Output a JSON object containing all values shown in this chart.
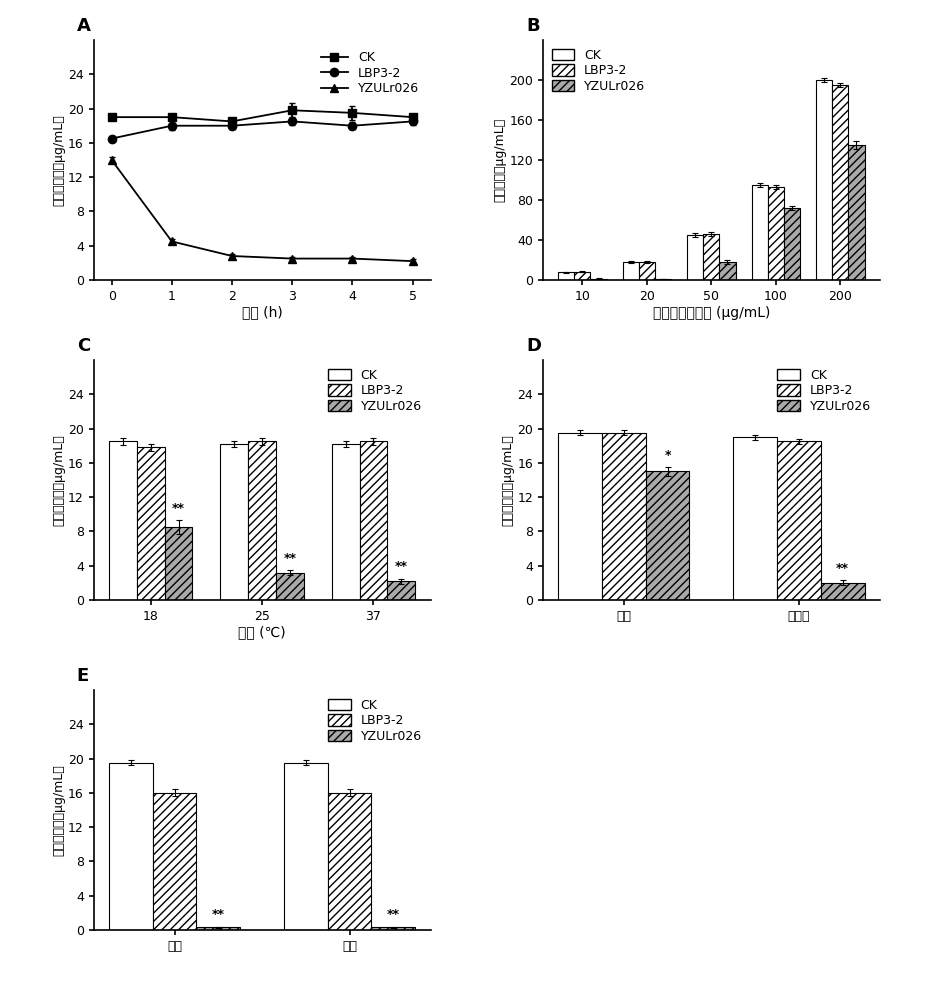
{
  "panel_A": {
    "label": "A",
    "xlabel": "时间 (h)",
    "ylabel": "鸟噘咄浓度（μg/mL）",
    "xlim": [
      -0.3,
      5.3
    ],
    "ylim": [
      0,
      28
    ],
    "yticks": [
      0,
      4,
      8,
      12,
      16,
      20,
      24
    ],
    "xticks": [
      0,
      1,
      2,
      3,
      4,
      5
    ],
    "CK_x": [
      0,
      1,
      2,
      3,
      4,
      5
    ],
    "CK_y": [
      19.0,
      19.0,
      18.5,
      19.8,
      19.5,
      19.0
    ],
    "CK_err": [
      0.3,
      0.4,
      0.3,
      0.8,
      0.8,
      0.4
    ],
    "LBP_x": [
      0,
      1,
      2,
      3,
      4,
      5
    ],
    "LBP_y": [
      16.5,
      18.0,
      18.0,
      18.5,
      18.0,
      18.5
    ],
    "LBP_err": [
      0.3,
      0.5,
      0.4,
      0.4,
      0.4,
      0.4
    ],
    "YZU_x": [
      0,
      1,
      2,
      3,
      4,
      5
    ],
    "YZU_y": [
      14.0,
      4.5,
      2.8,
      2.5,
      2.5,
      2.2
    ],
    "YZU_err": [
      0.3,
      0.3,
      0.2,
      0.2,
      0.2,
      0.2
    ],
    "legend_labels": [
      "CK",
      "LBP3-2",
      "YZULr026"
    ],
    "legend_markers": [
      "s",
      "o",
      "^"
    ]
  },
  "panel_B": {
    "label": "B",
    "xlabel": "鸟噘咄初始浓度 (μg/mL)",
    "ylabel": "残余浓度（μg/mL）",
    "xlim_groups": [
      10,
      20,
      50,
      100,
      200
    ],
    "ylim": [
      0,
      240
    ],
    "yticks": [
      0,
      40,
      80,
      120,
      160,
      200
    ],
    "CK_vals": [
      8.0,
      18.0,
      45.0,
      95.0,
      200.0
    ],
    "LBP_vals": [
      8.5,
      18.0,
      46.0,
      93.0,
      195.0
    ],
    "YZU_vals": [
      1.5,
      1.0,
      18.0,
      72.0,
      135.0
    ],
    "CK_err": [
      0.5,
      1.0,
      2.0,
      2.0,
      2.0
    ],
    "LBP_err": [
      0.5,
      1.0,
      2.0,
      2.0,
      2.0
    ],
    "YZU_err": [
      0.3,
      0.3,
      2.0,
      2.0,
      4.0
    ],
    "legend_labels": [
      "CK",
      "LBP3-2",
      "YZULr026"
    ],
    "bar_width": 0.25
  },
  "panel_C": {
    "label": "C",
    "xlabel": "温度 (℃)",
    "ylabel": "鸟噘咄浓度（μg/mL）",
    "groups": [
      "18",
      "25",
      "37"
    ],
    "ylim": [
      0,
      28
    ],
    "yticks": [
      0,
      4,
      8,
      12,
      16,
      20,
      24
    ],
    "CK_vals": [
      18.5,
      18.2,
      18.2
    ],
    "LBP_vals": [
      17.8,
      18.5,
      18.5
    ],
    "YZU_vals": [
      8.5,
      3.2,
      2.2
    ],
    "CK_err": [
      0.4,
      0.4,
      0.4
    ],
    "LBP_err": [
      0.4,
      0.4,
      0.4
    ],
    "YZU_err": [
      0.8,
      0.3,
      0.3
    ],
    "sig_labels": [
      "**",
      "**",
      "**"
    ],
    "legend_labels": [
      "CK",
      "LBP3-2",
      "YZULr026"
    ],
    "bar_width": 0.25
  },
  "panel_D": {
    "label": "D",
    "xlabel": "",
    "ylabel": "鸟噘咄浓度（μg/mL）",
    "groups": [
      "灿活",
      "活细胞"
    ],
    "ylim": [
      0,
      28
    ],
    "yticks": [
      0,
      4,
      8,
      12,
      16,
      20,
      24
    ],
    "CK_vals": [
      19.5,
      19.0
    ],
    "LBP_vals": [
      19.5,
      18.5
    ],
    "YZU_vals": [
      15.0,
      2.0
    ],
    "CK_err": [
      0.3,
      0.3
    ],
    "LBP_err": [
      0.3,
      0.3
    ],
    "YZU_err": [
      0.5,
      0.3
    ],
    "sig_labels": [
      "*",
      "**"
    ],
    "legend_labels": [
      "CK",
      "LBP3-2",
      "YZULr026"
    ],
    "bar_width": 0.25
  },
  "panel_E": {
    "label": "E",
    "xlabel": "",
    "ylabel": "鸟噘咄浓度（μg/mL）",
    "groups": [
      "上清",
      "沉淠"
    ],
    "ylim": [
      0,
      28
    ],
    "yticks": [
      0,
      4,
      8,
      12,
      16,
      20,
      24
    ],
    "CK_vals": [
      19.5,
      19.5
    ],
    "LBP_vals": [
      16.0,
      16.0
    ],
    "YZU_vals": [
      0.3,
      0.3
    ],
    "CK_err": [
      0.3,
      0.3
    ],
    "LBP_err": [
      0.4,
      0.4
    ],
    "YZU_err": [
      0.1,
      0.1
    ],
    "sig_labels": [
      "**",
      "**"
    ],
    "legend_labels": [
      "CK",
      "LBP3-2",
      "YZULr026"
    ],
    "bar_width": 0.25
  }
}
